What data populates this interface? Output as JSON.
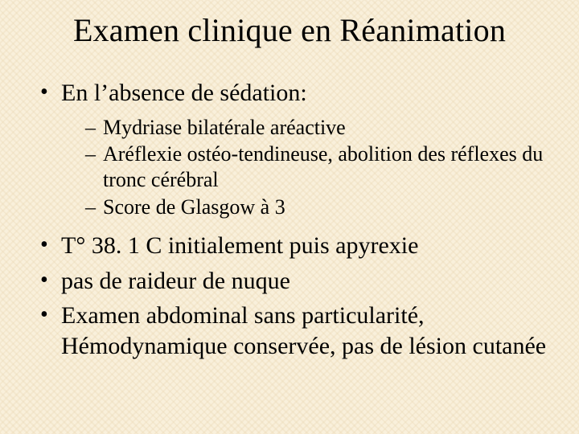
{
  "colors": {
    "background": "#f9f0db",
    "weave": "#e6d2aa",
    "text": "#000000"
  },
  "typography": {
    "family": "Times New Roman",
    "title_fontsize": 40,
    "level1_fontsize": 30,
    "level2_fontsize": 26
  },
  "title": "Examen clinique en Réanimation",
  "bullets": [
    {
      "text": "En l’absence de sédation:",
      "sub": [
        "Mydriase bilatérale aréactive",
        "Aréflexie ostéo-tendineuse, abolition des réflexes du tronc cérébral",
        "Score de Glasgow à 3"
      ]
    },
    {
      "text": "T° 38. 1 C initialement puis apyrexie"
    },
    {
      "text": "pas de raideur de nuque"
    },
    {
      "text": "Examen abdominal sans particularité, Hémodynamique conservée, pas de lésion cutanée"
    }
  ]
}
